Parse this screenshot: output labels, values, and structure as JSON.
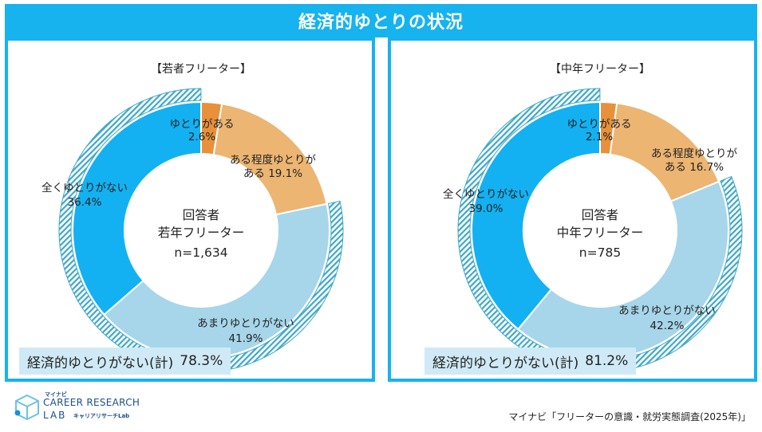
{
  "title": "経済的ゆとりの状況",
  "colors": {
    "accent": "#16b3ee",
    "slice_1": "#e8913a",
    "slice_2": "#ecb572",
    "slice_3": "#a7d6ea",
    "slice_4": "#13b1f1",
    "total_box": "#cfeaf6",
    "hatch": "#3fa8c9"
  },
  "chart_data": [
    {
      "type": "pie",
      "heading": "【若者フリーター】",
      "center": {
        "line1": "回答者",
        "line2": "若年フリーター",
        "line3": "n=1,634"
      },
      "slices": [
        {
          "name": "ゆとりがある",
          "value_label": "2.6%",
          "value": 2.6
        },
        {
          "name": "ある程度ゆとりが",
          "name2": "ある",
          "value_label": "19.1%",
          "value": 19.1
        },
        {
          "name": "あまりゆとりがない",
          "value_label": "41.9%",
          "value": 41.9
        },
        {
          "name": "全くゆとりがない",
          "value_label": "36.4%",
          "value": 36.4
        }
      ],
      "total": {
        "label": "経済的ゆとりがない(計)",
        "value_label": "78.3%",
        "value": 78.3
      }
    },
    {
      "type": "pie",
      "heading": "【中年フリーター】",
      "center": {
        "line1": "回答者",
        "line2": "中年フリーター",
        "line3": "n=785"
      },
      "slices": [
        {
          "name": "ゆとりがある",
          "value_label": "2.1%",
          "value": 2.1
        },
        {
          "name": "ある程度ゆとりが",
          "name2": "ある",
          "value_label": "16.7%",
          "value": 16.7
        },
        {
          "name": "あまりゆとりがない",
          "value_label": "42.2%",
          "value": 42.2
        },
        {
          "name": "全くゆとりがない",
          "value_label": "39.0%",
          "value": 39.0
        }
      ],
      "total": {
        "label": "経済的ゆとりがない(計)",
        "value_label": "81.2%",
        "value": 81.2
      }
    }
  ],
  "logo": {
    "katakana": "マイナビ",
    "main": "CAREER RESEARCH",
    "lab": "LAB",
    "sub": "キャリアリサーチLab"
  },
  "source": "マイナビ「フリーターの意識・就労実態調査(2025年)」"
}
